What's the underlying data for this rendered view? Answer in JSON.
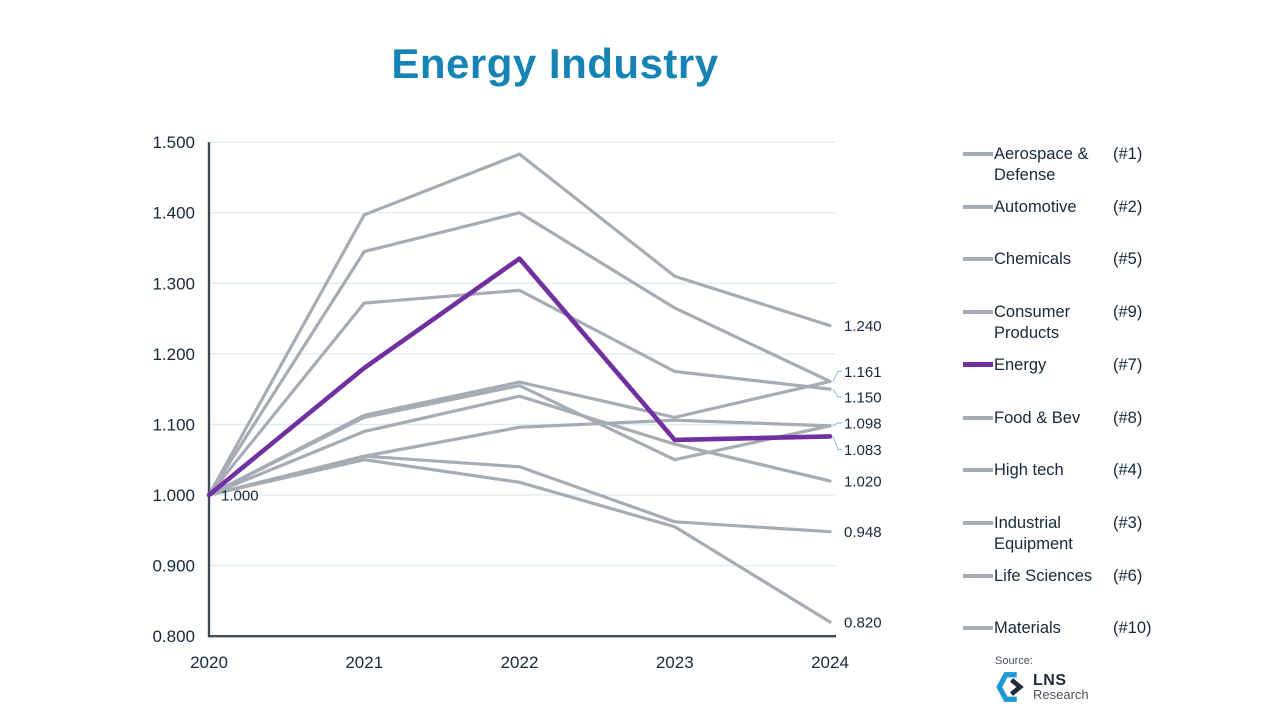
{
  "slide": {
    "title": "Energy Industry"
  },
  "source": {
    "label": "Source:",
    "brand_top": "LNS",
    "brand_bottom": "Research"
  },
  "colors": {
    "title": "#1583B3",
    "text": "#17293A",
    "line_gray": "#A6ACB3",
    "line_energy": "#7030A0",
    "gridline": "#DEEBF2",
    "axis": "#404A54",
    "leader": "#9DC3E6",
    "brand_blue": "#1B9AD6",
    "brand_dark": "#1E2A38",
    "brand_gray": "#4A545E"
  },
  "chart_data": {
    "type": "line",
    "title": "Energy Industry",
    "x": [
      "2020",
      "2021",
      "2022",
      "2023",
      "2024"
    ],
    "xlabel": "",
    "ylabel": "",
    "ylim": [
      0.8,
      1.5
    ],
    "yticks": [
      "1.500",
      "1.400",
      "1.300",
      "1.200",
      "1.100",
      "1.000",
      "0.900",
      "0.800"
    ],
    "grid": true,
    "legend_position": "right",
    "start_label": "1.000",
    "series": [
      {
        "name": "Aerospace & Defense",
        "rank": "(#1)",
        "values": [
          1.0,
          1.397,
          1.483,
          1.31,
          1.24
        ],
        "end_label": "1.240",
        "label_dy": 0,
        "emphasis": false
      },
      {
        "name": "Automotive",
        "rank": "(#2)",
        "values": [
          1.0,
          1.345,
          1.4,
          1.265,
          1.161
        ],
        "end_label": "1.161",
        "label_dy": -10,
        "emphasis": false
      },
      {
        "name": "Chemicals",
        "rank": "(#5)",
        "values": [
          1.0,
          1.11,
          1.155,
          1.05,
          1.098
        ],
        "end_label": "1.098",
        "label_dy": -3,
        "emphasis": false
      },
      {
        "name": "Consumer Products",
        "rank": "(#9)",
        "values": [
          1.0,
          1.055,
          1.04,
          0.962,
          0.948
        ],
        "end_label": "0.948",
        "label_dy": 0,
        "emphasis": false
      },
      {
        "name": "Energy",
        "rank": "(#7)",
        "values": [
          1.0,
          1.18,
          1.335,
          1.078,
          1.083
        ],
        "end_label": "1.083",
        "label_dy": 13,
        "emphasis": true
      },
      {
        "name": "Food & Bev",
        "rank": "(#8)",
        "values": [
          1.0,
          1.09,
          1.14,
          1.072,
          1.02
        ],
        "end_label": "1.020",
        "label_dy": 0,
        "emphasis": false
      },
      {
        "name": "High tech",
        "rank": "(#4)",
        "values": [
          1.0,
          1.113,
          1.16,
          1.11,
          1.161
        ],
        "end_label": "",
        "label_dy": 0,
        "emphasis": false
      },
      {
        "name": "Industrial Equipment",
        "rank": "(#3)",
        "values": [
          1.0,
          1.272,
          1.29,
          1.175,
          1.15
        ],
        "end_label": "1.150",
        "label_dy": 8,
        "emphasis": false
      },
      {
        "name": "Life Sciences",
        "rank": "(#6)",
        "values": [
          1.0,
          1.055,
          1.096,
          1.106,
          1.098
        ],
        "end_label": "",
        "label_dy": 0,
        "emphasis": false
      },
      {
        "name": "Materials",
        "rank": "(#10)",
        "values": [
          1.0,
          1.05,
          1.018,
          0.955,
          0.82
        ],
        "end_label": "0.820",
        "label_dy": 0,
        "emphasis": false
      }
    ]
  }
}
